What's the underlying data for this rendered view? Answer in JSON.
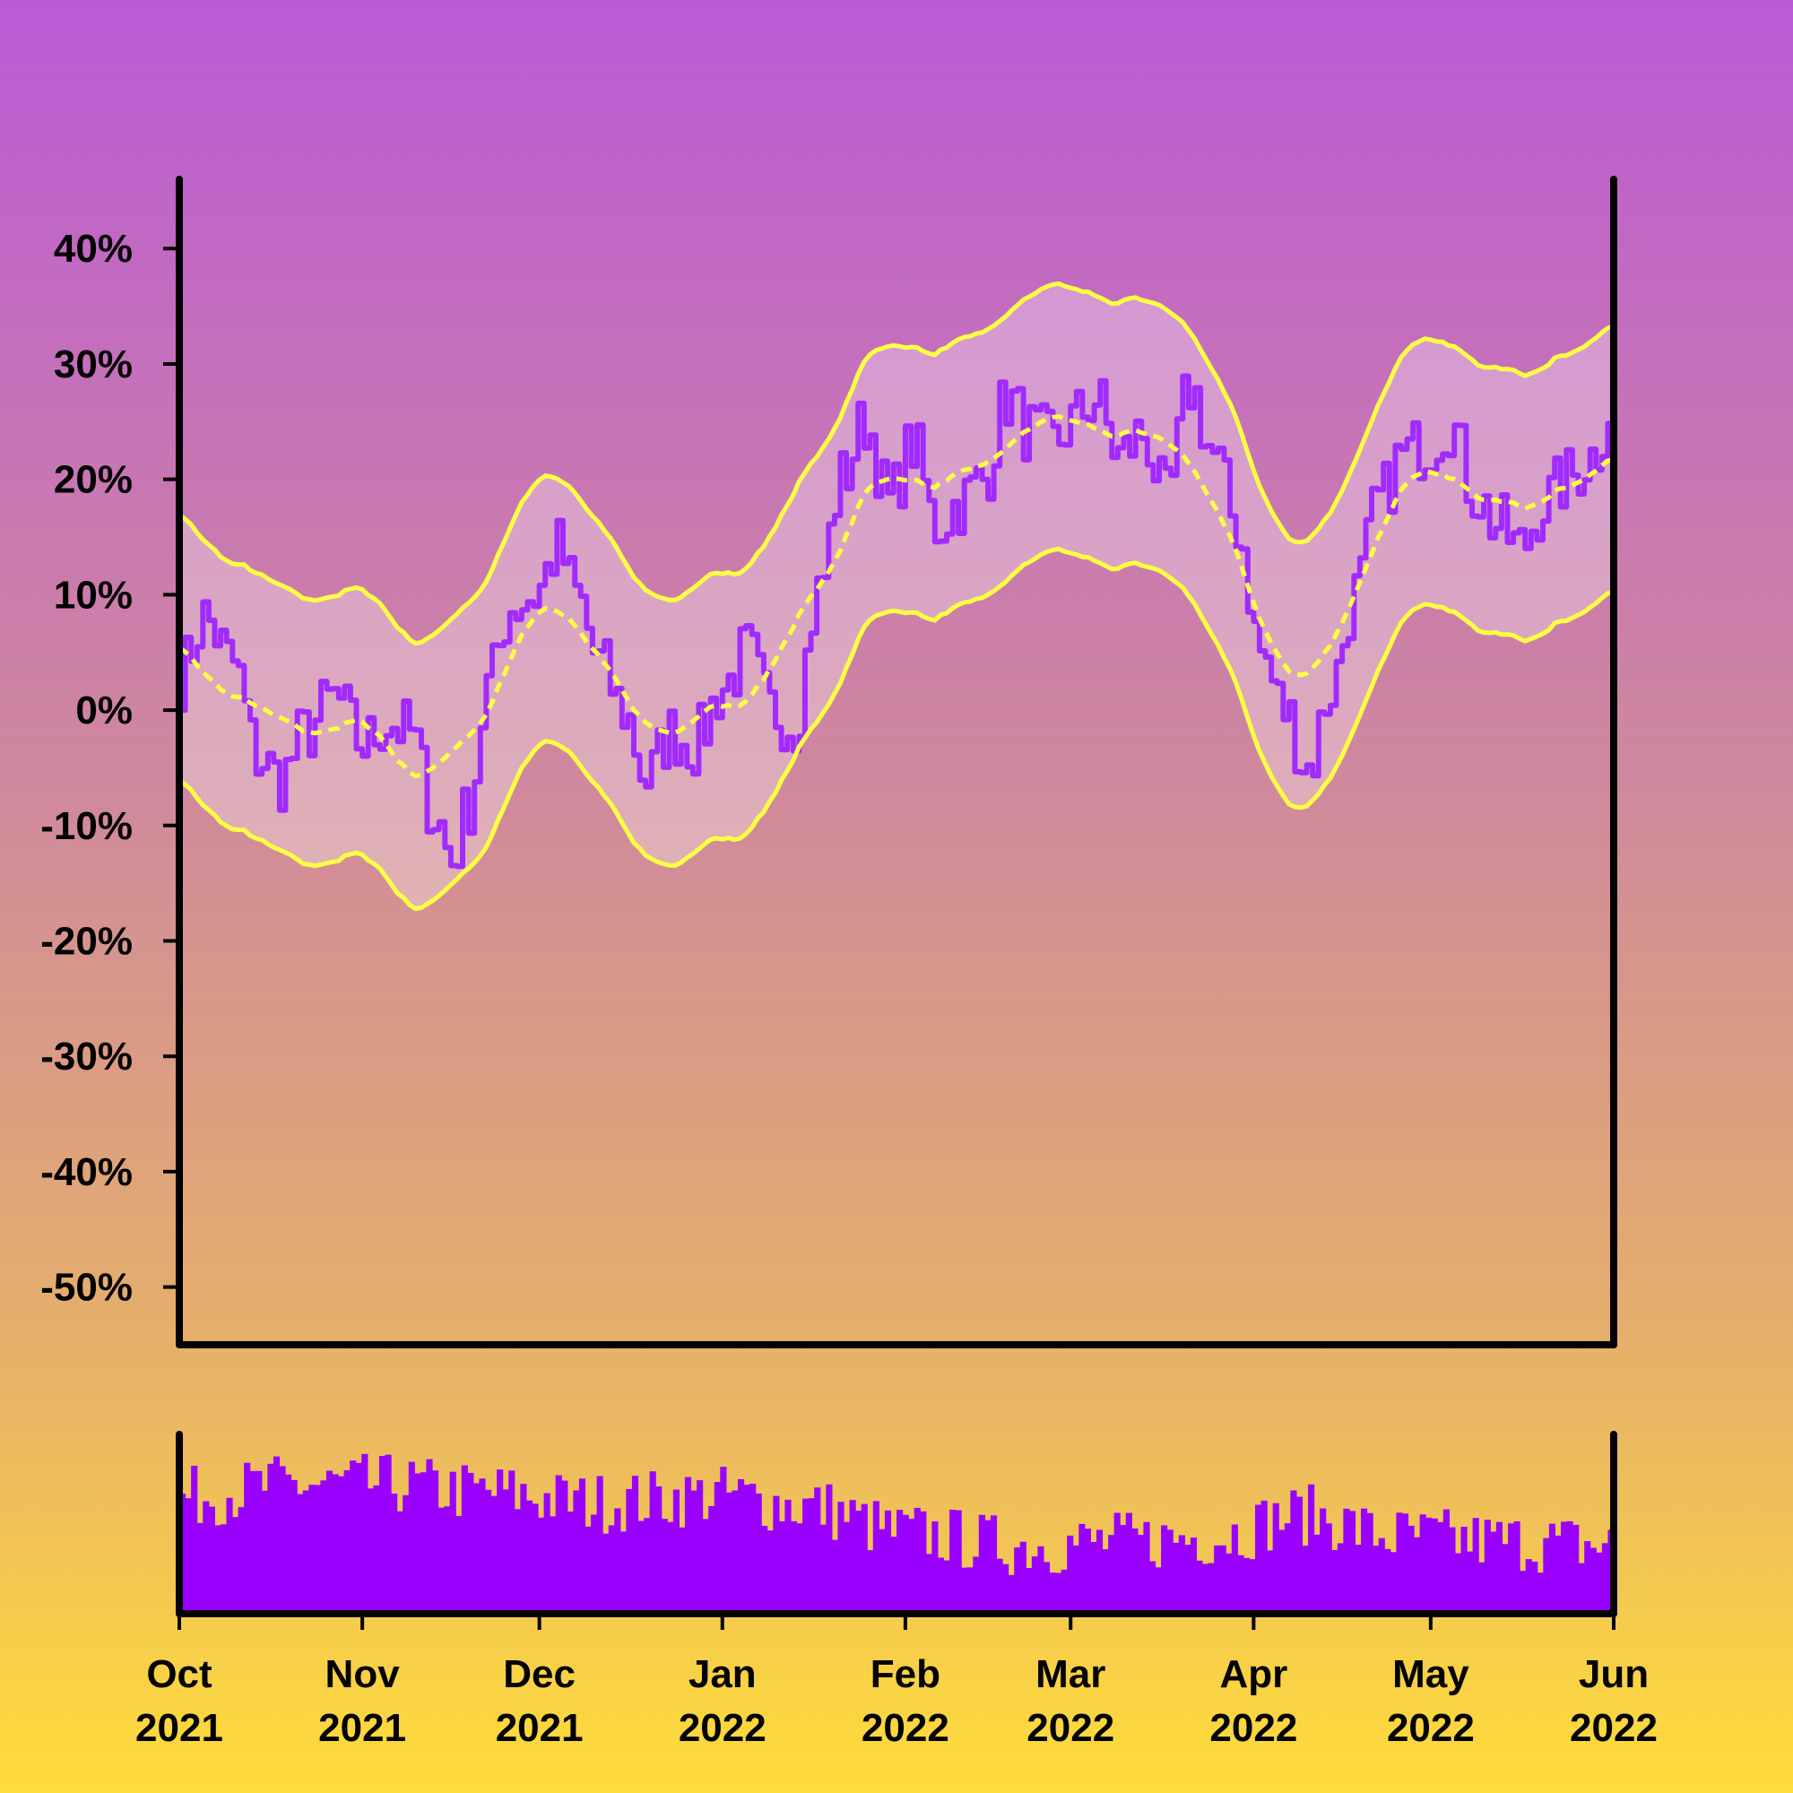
{
  "colors": {
    "background_top": "#bb5ad6",
    "background_bottom": "#ffdd3a",
    "price_line": "#a12bff",
    "band_lines": "#ffff44",
    "band_fill": "#ffffff",
    "volume_bars": "#9900ff",
    "axes": "#000000"
  },
  "chart_data": {
    "type": "line",
    "grid": false,
    "legend": "none",
    "y_axis": {
      "ylim": [
        -55,
        46
      ],
      "ticks": [
        40,
        30,
        20,
        10,
        0,
        -10,
        -20,
        -30,
        -40,
        -50
      ],
      "tick_labels": [
        "40%",
        "30%",
        "20%",
        "10%",
        "0%",
        "-10%",
        "-20%",
        "-30%",
        "-40%",
        "-50%"
      ]
    },
    "x_axis": {
      "start": "2021-10-01",
      "end": "2022-06-01",
      "ticks": [
        "2021-10-01",
        "2021-11-01",
        "2021-12-01",
        "2022-01-01",
        "2022-02-01",
        "2022-03-01",
        "2022-04-01",
        "2022-05-01",
        "2022-06-01"
      ],
      "tick_labels": [
        [
          "Oct",
          "2021"
        ],
        [
          "Nov",
          "2021"
        ],
        [
          "Dec",
          "2021"
        ],
        [
          "Jan",
          "2022"
        ],
        [
          "Feb",
          "2022"
        ],
        [
          "Mar",
          "2022"
        ],
        [
          "Apr",
          "2022"
        ],
        [
          "May",
          "2022"
        ],
        [
          "Jun",
          "2022"
        ]
      ]
    },
    "price_anchors": [
      [
        "2021-10-01",
        3
      ],
      [
        "2021-10-05",
        8
      ],
      [
        "2021-10-10",
        4
      ],
      [
        "2021-10-14",
        -4
      ],
      [
        "2021-10-18",
        -6
      ],
      [
        "2021-10-22",
        -2
      ],
      [
        "2021-10-27",
        1
      ],
      [
        "2021-11-01",
        -3
      ],
      [
        "2021-11-05",
        -1
      ],
      [
        "2021-11-09",
        -2
      ],
      [
        "2021-11-13",
        -9
      ],
      [
        "2021-11-16",
        -13
      ],
      [
        "2021-11-19",
        -8
      ],
      [
        "2021-11-22",
        2
      ],
      [
        "2021-11-26",
        9
      ],
      [
        "2021-11-30",
        10
      ],
      [
        "2021-12-04",
        14
      ],
      [
        "2021-12-07",
        10
      ],
      [
        "2021-12-11",
        4
      ],
      [
        "2021-12-15",
        0
      ],
      [
        "2021-12-19",
        -6
      ],
      [
        "2021-12-23",
        -2
      ],
      [
        "2021-12-27",
        -3
      ],
      [
        "2022-01-01",
        2
      ],
      [
        "2022-01-05",
        5
      ],
      [
        "2022-01-09",
        0
      ],
      [
        "2022-01-13",
        -1
      ],
      [
        "2022-01-17",
        10
      ],
      [
        "2022-01-21",
        20
      ],
      [
        "2022-01-25",
        25
      ],
      [
        "2022-01-29",
        18
      ],
      [
        "2022-02-02",
        23
      ],
      [
        "2022-02-06",
        16
      ],
      [
        "2022-02-10",
        18
      ],
      [
        "2022-02-14",
        20
      ],
      [
        "2022-02-18",
        27
      ],
      [
        "2022-02-22",
        24
      ],
      [
        "2022-02-26",
        23
      ],
      [
        "2022-03-01",
        25
      ],
      [
        "2022-03-05",
        27
      ],
      [
        "2022-03-09",
        22
      ],
      [
        "2022-03-13",
        24
      ],
      [
        "2022-03-17",
        18
      ],
      [
        "2022-03-21",
        28
      ],
      [
        "2022-03-25",
        22
      ],
      [
        "2022-03-29",
        16
      ],
      [
        "2022-04-02",
        5
      ],
      [
        "2022-04-06",
        0
      ],
      [
        "2022-04-10",
        -5
      ],
      [
        "2022-04-14",
        2
      ],
      [
        "2022-04-18",
        10
      ],
      [
        "2022-04-22",
        18
      ],
      [
        "2022-04-26",
        22
      ],
      [
        "2022-04-30",
        23
      ],
      [
        "2022-05-04",
        25
      ],
      [
        "2022-05-08",
        19
      ],
      [
        "2022-05-12",
        16
      ],
      [
        "2022-05-16",
        14
      ],
      [
        "2022-05-20",
        18
      ],
      [
        "2022-05-24",
        20
      ],
      [
        "2022-05-28",
        22
      ],
      [
        "2022-06-01",
        27
      ]
    ],
    "band_width": 11.5,
    "volume_levels": [
      [
        "2021-10-01",
        0.65
      ],
      [
        "2021-10-20",
        0.72
      ],
      [
        "2021-11-05",
        0.72
      ],
      [
        "2021-11-20",
        0.68
      ],
      [
        "2021-12-10",
        0.62
      ],
      [
        "2022-01-01",
        0.66
      ],
      [
        "2022-01-15",
        0.6
      ],
      [
        "2022-02-01",
        0.45
      ],
      [
        "2022-02-20",
        0.38
      ],
      [
        "2022-03-10",
        0.4
      ],
      [
        "2022-03-25",
        0.43
      ],
      [
        "2022-04-10",
        0.55
      ],
      [
        "2022-04-25",
        0.43
      ],
      [
        "2022-05-15",
        0.4
      ],
      [
        "2022-06-01",
        0.38
      ]
    ]
  }
}
